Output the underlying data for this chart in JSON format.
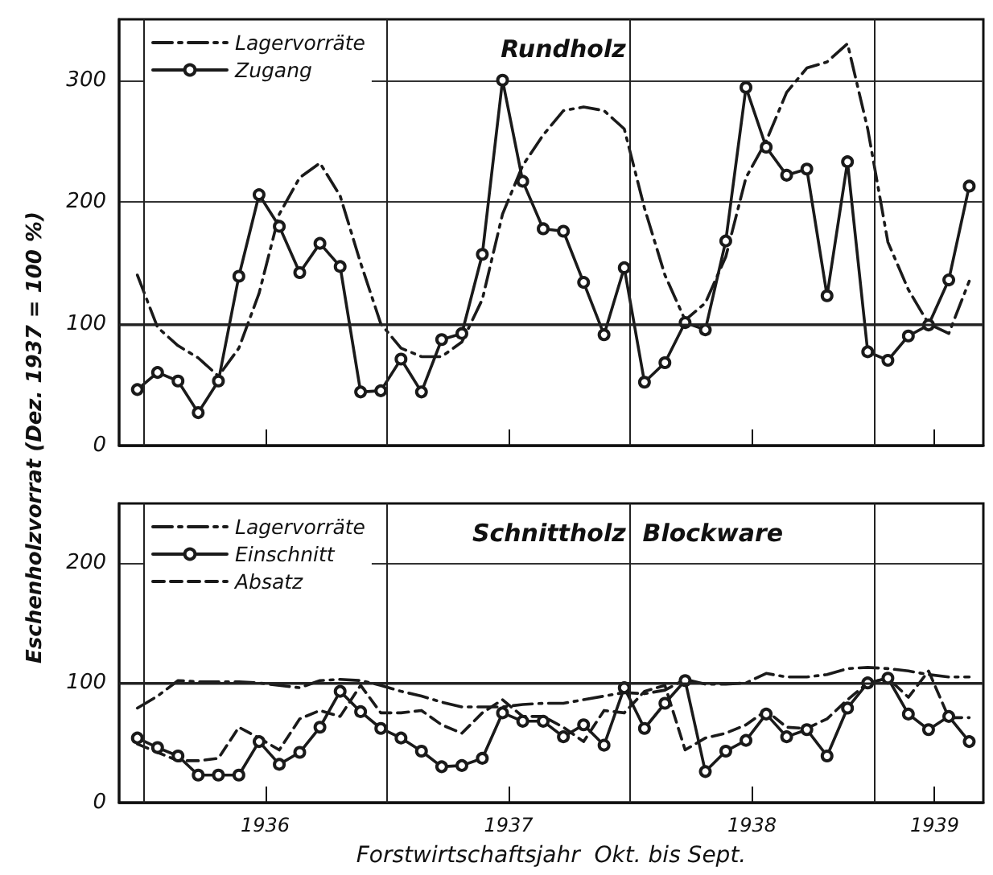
{
  "chart_data": [
    {
      "type": "line",
      "title": "Rundholz",
      "ylabel": "Eschenholzvorrat (Dez. 1937 = 100 %)",
      "x": [
        1935.975,
        1936.058,
        1936.142,
        1936.225,
        1936.308,
        1936.392,
        1936.475,
        1936.558,
        1936.642,
        1936.725,
        1936.808,
        1936.892,
        1936.975,
        1937.058,
        1937.142,
        1937.225,
        1937.308,
        1937.392,
        1937.475,
        1937.558,
        1937.642,
        1937.725,
        1937.808,
        1937.892,
        1937.975,
        1938.058,
        1938.142,
        1938.225,
        1938.308,
        1938.392,
        1938.475,
        1938.558,
        1938.642,
        1938.725,
        1938.808,
        1938.892,
        1938.975,
        1939.058,
        1939.142,
        1939.225,
        1939.308,
        1939.392
      ],
      "series": [
        {
          "name": "Lagervorräte",
          "color": "#1a1a1a",
          "line_style": "dashdot",
          "marker": "none",
          "values": [
            140,
            97,
            82,
            72,
            57,
            80,
            125,
            190,
            220,
            232,
            205,
            150,
            100,
            80,
            73,
            73,
            85,
            120,
            190,
            230,
            255,
            275,
            278,
            275,
            260,
            195,
            140,
            103,
            117,
            155,
            220,
            250,
            290,
            310,
            315,
            330,
            260,
            167,
            128,
            100,
            92,
            135
          ]
        },
        {
          "name": "Zugang",
          "color": "#1a1a1a",
          "line_style": "solid",
          "marker": "circle",
          "values": [
            46,
            60,
            53,
            27,
            53,
            139,
            206,
            180,
            142,
            166,
            147,
            44,
            45,
            71,
            44,
            87,
            92,
            157,
            300,
            217,
            178,
            176,
            134,
            91,
            146,
            52,
            68,
            101,
            95,
            168,
            294,
            245,
            222,
            227,
            123,
            233,
            77,
            70,
            90,
            99,
            136,
            213
          ]
        }
      ],
      "xlim": [
        1935.9,
        1939.45
      ],
      "xticks": [
        {
          "value": 1936.5,
          "label": null
        },
        {
          "value": 1937.5,
          "label": null
        },
        {
          "value": 1938.5,
          "label": null
        },
        {
          "value": 1939.25,
          "label": null
        }
      ],
      "ylim": [
        0,
        350
      ],
      "yticks": [
        0,
        100,
        200,
        300
      ],
      "tick_labels": "y",
      "grid": "y",
      "legend": "top left",
      "ref_lines": [
        {
          "axis": "x",
          "value": 1936
        },
        {
          "axis": "x",
          "value": 1937
        },
        {
          "axis": "x",
          "value": 1938
        },
        {
          "axis": "x",
          "value": 1939
        },
        {
          "axis": "y",
          "value": 100
        }
      ]
    },
    {
      "type": "line",
      "title": "Schnittholz  Blockware",
      "xlabel": "Forstwirtschaftsjahr  Okt. bis Sept.",
      "x": [
        1935.975,
        1936.058,
        1936.142,
        1936.225,
        1936.308,
        1936.392,
        1936.475,
        1936.558,
        1936.642,
        1936.725,
        1936.808,
        1936.892,
        1936.975,
        1937.058,
        1937.142,
        1937.225,
        1937.308,
        1937.392,
        1937.475,
        1937.558,
        1937.642,
        1937.725,
        1937.808,
        1937.892,
        1937.975,
        1938.058,
        1938.142,
        1938.225,
        1938.308,
        1938.392,
        1938.475,
        1938.558,
        1938.642,
        1938.725,
        1938.808,
        1938.892,
        1938.975,
        1939.058,
        1939.142,
        1939.225,
        1939.308,
        1939.392
      ],
      "series": [
        {
          "name": "Lagervorräte",
          "color": "#1a1a1a",
          "line_style": "dashdot",
          "marker": "none",
          "values": [
            79,
            89,
            102,
            101,
            101,
            101,
            100,
            98,
            96,
            102,
            103,
            102,
            98,
            93,
            89,
            84,
            80,
            80,
            80,
            82,
            83,
            83,
            86,
            89,
            92,
            91,
            94,
            103,
            99,
            99,
            100,
            108,
            105,
            105,
            107,
            112,
            113,
            112,
            110,
            107,
            105,
            105
          ]
        },
        {
          "name": "Einschnitt",
          "color": "#1a1a1a",
          "line_style": "solid",
          "marker": "circle",
          "values": [
            54,
            46,
            39,
            23,
            23,
            23,
            51,
            32,
            42,
            63,
            93,
            76,
            62,
            54,
            43,
            30,
            31,
            37,
            75,
            68,
            68,
            55,
            65,
            48,
            96,
            62,
            83,
            102,
            26,
            43,
            52,
            74,
            55,
            61,
            39,
            79,
            100,
            104,
            74,
            61,
            72,
            51
          ]
        },
        {
          "name": "Absatz",
          "color": "#1a1a1a",
          "line_style": "dashed",
          "marker": "none",
          "values": [
            49,
            42,
            35,
            35,
            37,
            63,
            54,
            44,
            70,
            77,
            72,
            98,
            75,
            75,
            77,
            65,
            58,
            75,
            86,
            72,
            72,
            63,
            51,
            77,
            75,
            93,
            98,
            44,
            54,
            58,
            65,
            77,
            63,
            62,
            70,
            86,
            100,
            104,
            88,
            110,
            71,
            71
          ]
        }
      ],
      "xlim": [
        1935.9,
        1939.45
      ],
      "xticks": [
        {
          "value": 1936.5,
          "label": "1936"
        },
        {
          "value": 1937.5,
          "label": "1937"
        },
        {
          "value": 1938.5,
          "label": "1938"
        },
        {
          "value": 1939.25,
          "label": "1939"
        }
      ],
      "ylim": [
        0,
        250
      ],
      "yticks": [
        0,
        100,
        200
      ],
      "grid": "y",
      "legend": "top left",
      "ref_lines": [
        {
          "axis": "x",
          "value": 1936
        },
        {
          "axis": "x",
          "value": 1937
        },
        {
          "axis": "x",
          "value": 1938
        },
        {
          "axis": "x",
          "value": 1939
        },
        {
          "axis": "y",
          "value": 100
        }
      ]
    }
  ]
}
